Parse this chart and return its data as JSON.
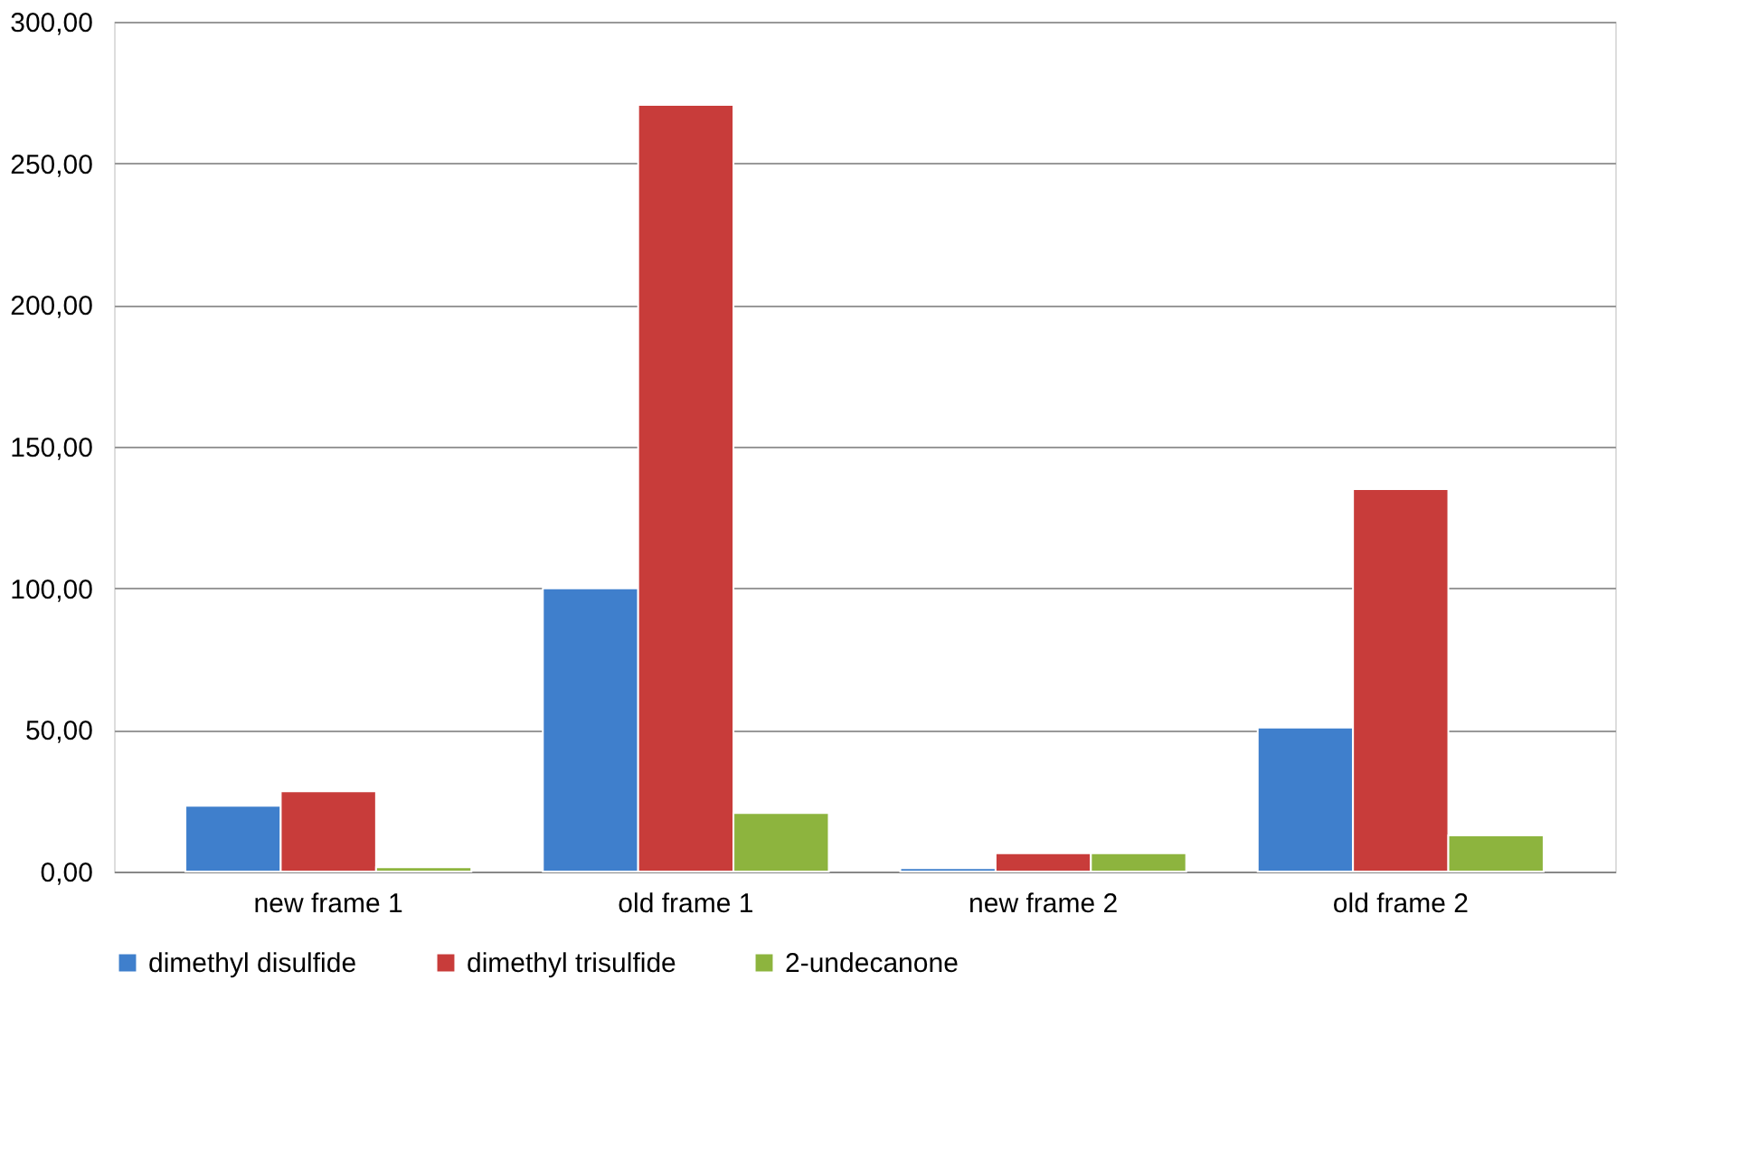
{
  "chart_data": {
    "type": "bar",
    "categories": [
      "new frame 1",
      "old frame 1",
      "new frame 2",
      "old frame 2"
    ],
    "series": [
      {
        "name": "dimethyl disulfide",
        "color": "#3f7fcc",
        "values": [
          23.2,
          100.0,
          1.2,
          50.8
        ]
      },
      {
        "name": "dimethyl trisulfide",
        "color": "#c83c3a",
        "values": [
          28.3,
          270.6,
          6.5,
          135.0
        ]
      },
      {
        "name": "2-undecanone",
        "color": "#8db43e",
        "values": [
          1.5,
          20.7,
          6.5,
          12.8
        ]
      }
    ],
    "ylim": [
      0,
      300
    ],
    "yticks": [
      {
        "value": 0,
        "label": "0,00"
      },
      {
        "value": 50,
        "label": "50,00"
      },
      {
        "value": 100,
        "label": "100,00"
      },
      {
        "value": 150,
        "label": "150,00"
      },
      {
        "value": 200,
        "label": "200,00"
      },
      {
        "value": 250,
        "label": "250,00"
      },
      {
        "value": 300,
        "label": "300,00"
      }
    ],
    "grid": "y",
    "legend": "bottom"
  }
}
